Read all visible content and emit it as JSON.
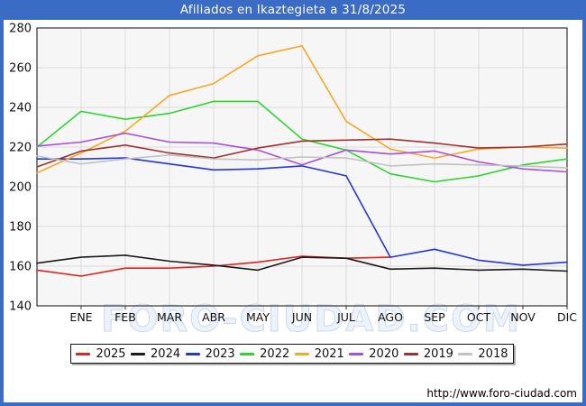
{
  "watermark": "FORO-CIUDAD.COM",
  "footer": {
    "url": "http://www.foro-ciudad.com"
  },
  "chart_data": {
    "type": "line",
    "title": "Afiliados en Ikaztegieta a 31/8/2025",
    "categories": [
      "ENE",
      "FEB",
      "MAR",
      "ABR",
      "MAY",
      "JUN",
      "JUL",
      "AGO",
      "SEP",
      "OCT",
      "NOV",
      "DIC"
    ],
    "ylim": [
      140,
      280
    ],
    "ytick_step": 20,
    "grid": true,
    "legend_position": "bottom",
    "x_layout": "13 points per full series: first point on left axis edge, then one point on each month gridline, DIC on right edge",
    "series": [
      {
        "name": "2025",
        "color": "#e02222",
        "values": [
          158,
          155,
          159,
          159,
          160,
          162,
          165,
          164,
          164.5
        ]
      },
      {
        "name": "2024",
        "color": "#1a1a1a",
        "values": [
          161.5,
          164.5,
          165.5,
          162.5,
          160.5,
          158,
          164.5,
          164,
          158.5,
          159,
          158,
          158.5,
          157.5
        ]
      },
      {
        "name": "2023",
        "color": "#2337d8",
        "values": [
          214,
          214,
          214.5,
          211.5,
          208.5,
          209,
          210.5,
          205.5,
          164.5,
          168.5,
          163,
          160.5,
          162
        ]
      },
      {
        "name": "2022",
        "color": "#2ed52e",
        "values": [
          220,
          238,
          234,
          237,
          243,
          243,
          224,
          218.5,
          206.5,
          202.5,
          205.5,
          211,
          214
        ]
      },
      {
        "name": "2021",
        "color": "#f7a825",
        "values": [
          207,
          217,
          228,
          246,
          252,
          266,
          271,
          233,
          219,
          214.5,
          219,
          220,
          219.5
        ]
      },
      {
        "name": "2020",
        "color": "#a94fd8",
        "values": [
          220.5,
          222.5,
          227,
          222.5,
          222,
          218.5,
          211,
          218.5,
          216.5,
          218,
          212.5,
          209,
          207.5
        ]
      },
      {
        "name": "2019",
        "color": "#a03232",
        "values": [
          210,
          218,
          221,
          217,
          214.5,
          219.5,
          223,
          223.5,
          224,
          222,
          219.5,
          220,
          221.5
        ]
      },
      {
        "name": "2018",
        "color": "#c2c2c2",
        "values": [
          215.5,
          211.5,
          214,
          216,
          214,
          213.5,
          215,
          214.5,
          210.5,
          211.5,
          211,
          210.5,
          209.5
        ]
      }
    ]
  }
}
